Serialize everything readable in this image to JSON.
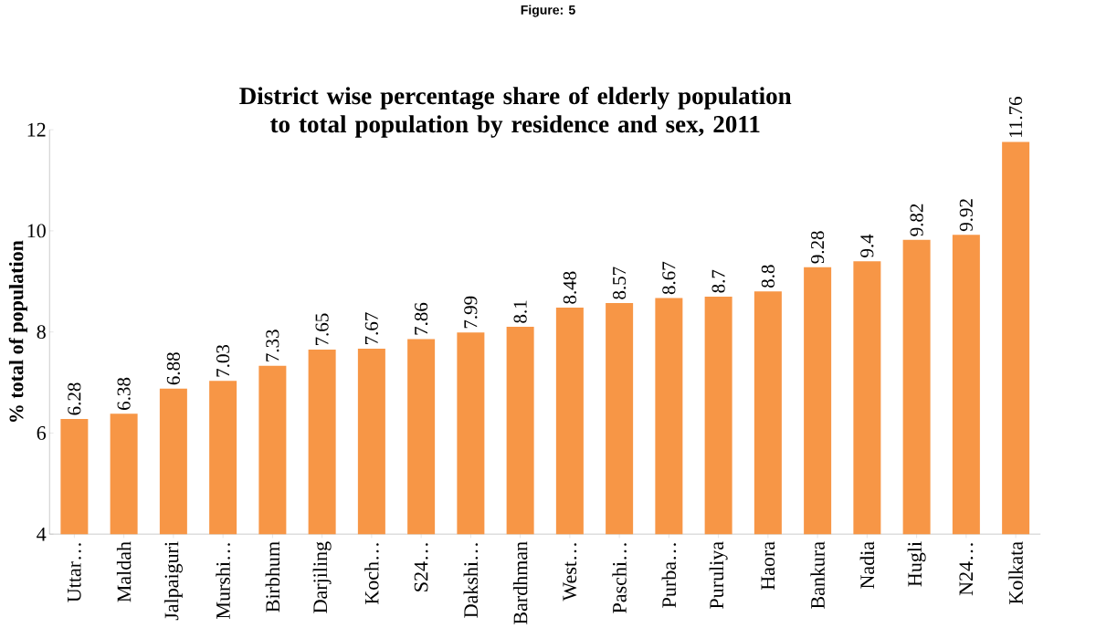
{
  "chart_data": {
    "type": "bar",
    "title": "District wise percentage share of elderly population to total population by residence and sex, 2011",
    "ylabel": "% total of population",
    "annotations": [
      "Figure: 5"
    ],
    "categories": [
      "Uttar…",
      "Maldah",
      "Jalpaiguri",
      "Murshi…",
      "Birbhum",
      "Darjiling",
      "Koch…",
      "S24…",
      "Dakshi…",
      "Bardhman",
      "West…",
      "Paschi…",
      "Purba…",
      "Puruliya",
      "Haora",
      "Bankura",
      "Nadia",
      "Hugli",
      "N24…",
      "Kolkata"
    ],
    "values": [
      6.28,
      6.38,
      6.88,
      7.03,
      7.33,
      7.65,
      7.67,
      7.86,
      7.99,
      8.1,
      8.48,
      8.57,
      8.67,
      8.7,
      8.8,
      9.28,
      9.4,
      9.82,
      9.92,
      11.76
    ],
    "color": "#f79646",
    "ylim": [
      4,
      12
    ],
    "yticks": [
      4,
      6,
      8,
      10,
      12
    ],
    "data_labels": true,
    "grid": false
  }
}
